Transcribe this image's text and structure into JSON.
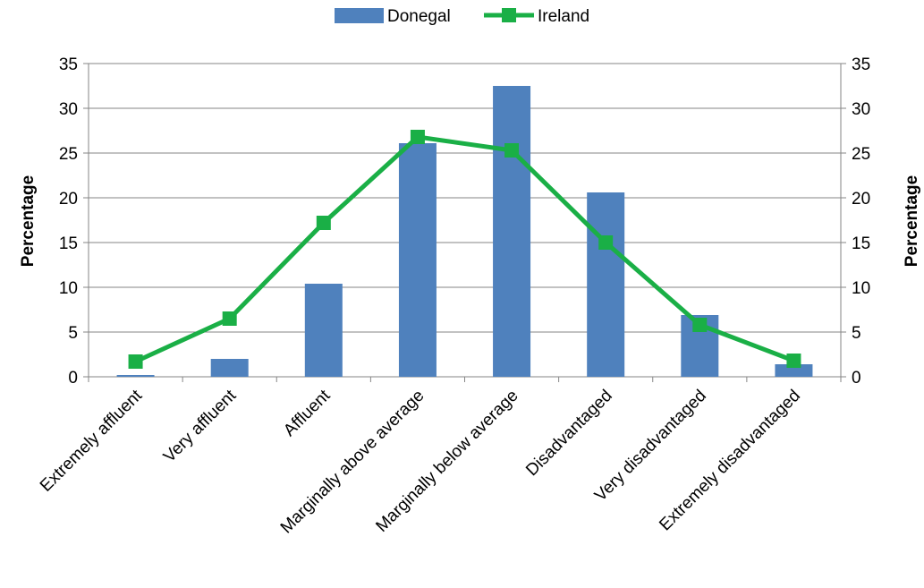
{
  "chart_data": {
    "type": "bar",
    "categories": [
      "Extremely affluent",
      "Very affluent",
      "Affluent",
      "Marginally above average",
      "Marginally below average",
      "Disadvantaged",
      "Very disadvantaged",
      "Extremely disadvantaged"
    ],
    "series": [
      {
        "name": "Donegal",
        "kind": "bar",
        "color": "#4F81BD",
        "values": [
          0.2,
          2.0,
          10.4,
          26.1,
          32.5,
          20.6,
          6.9,
          1.4
        ]
      },
      {
        "name": "Ireland",
        "kind": "line",
        "color": "#1AAF46",
        "marker": "square",
        "values": [
          1.7,
          6.5,
          17.2,
          26.8,
          25.3,
          15.0,
          5.8,
          1.8
        ]
      }
    ],
    "ylabel_left": "Percentage",
    "ylabel_right": "Percentage",
    "ylim": [
      0,
      35
    ],
    "yticks": [
      "0",
      "5",
      "10",
      "15",
      "20",
      "25",
      "30",
      "35"
    ],
    "grid": true,
    "legend_position": "top"
  }
}
